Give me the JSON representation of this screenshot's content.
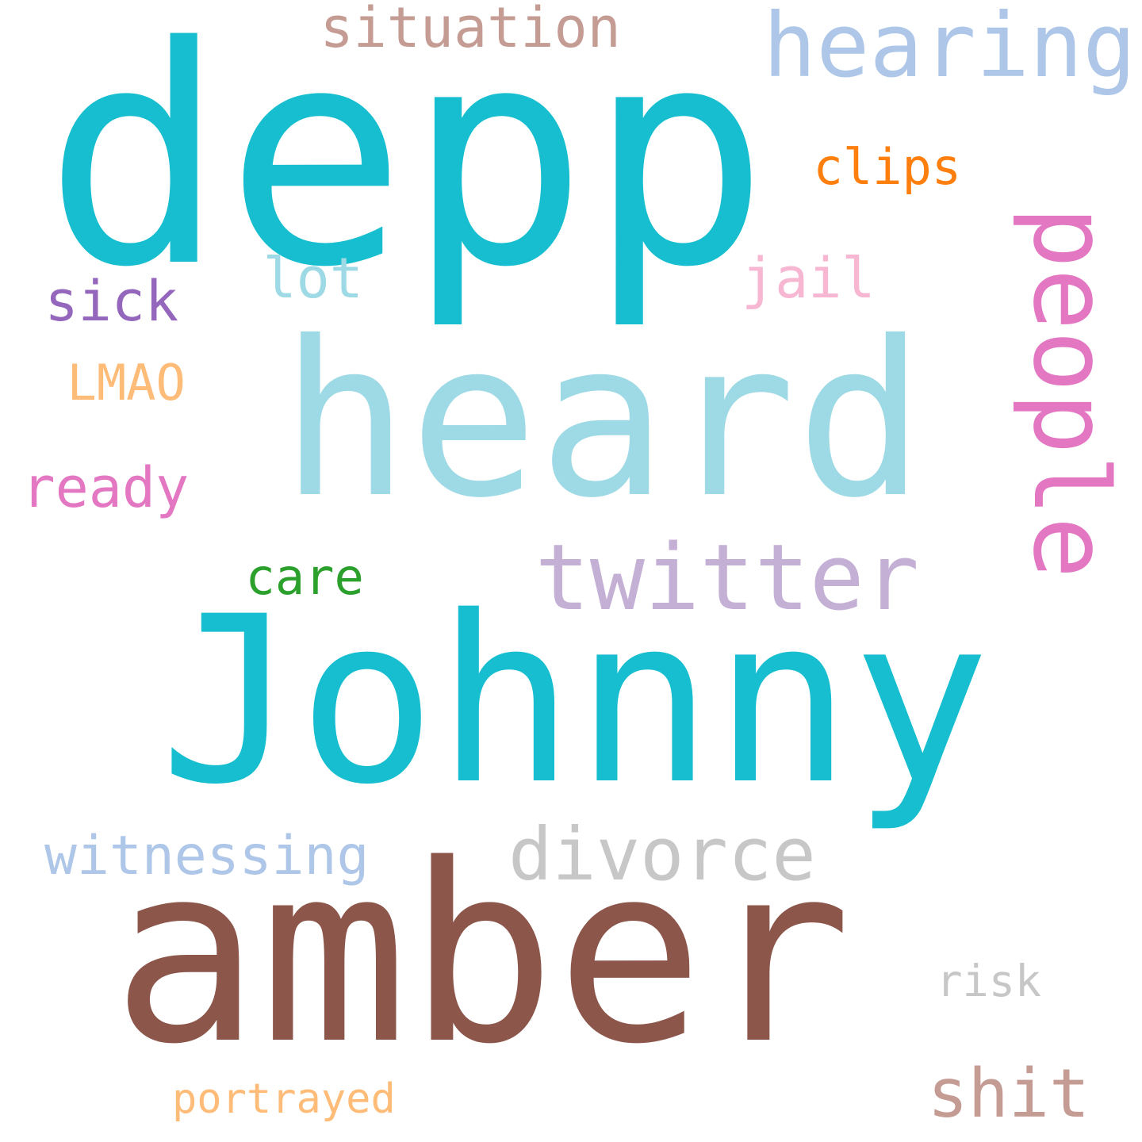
{
  "words": [
    {
      "text": "depp",
      "color": "#17becf"
    },
    {
      "text": "heard",
      "color": "#9edae5"
    },
    {
      "text": "Johnny",
      "color": "#17becf"
    },
    {
      "text": "amber",
      "color": "#8c564b"
    },
    {
      "text": "twitter",
      "color": "#c5b0d5"
    },
    {
      "text": "people",
      "color": "#e377c2"
    },
    {
      "text": "divorce",
      "color": "#c7c7c7"
    },
    {
      "text": "hearing",
      "color": "#aec7e8"
    },
    {
      "text": "situation",
      "color": "#c49c94"
    },
    {
      "text": "witnessing",
      "color": "#aec7e8"
    },
    {
      "text": "clips",
      "color": "#ff7f0e"
    },
    {
      "text": "shit",
      "color": "#c49c94"
    },
    {
      "text": "lot",
      "color": "#9edae5"
    },
    {
      "text": "jail",
      "color": "#f7b6d2"
    },
    {
      "text": "sick",
      "color": "#9467bd"
    },
    {
      "text": "LMAO",
      "color": "#ffbb78"
    },
    {
      "text": "ready",
      "color": "#e377c2"
    },
    {
      "text": "care",
      "color": "#2ca02c"
    },
    {
      "text": "risk",
      "color": "#c7c7c7"
    },
    {
      "text": "portrayed",
      "color": "#ffbb78"
    }
  ]
}
